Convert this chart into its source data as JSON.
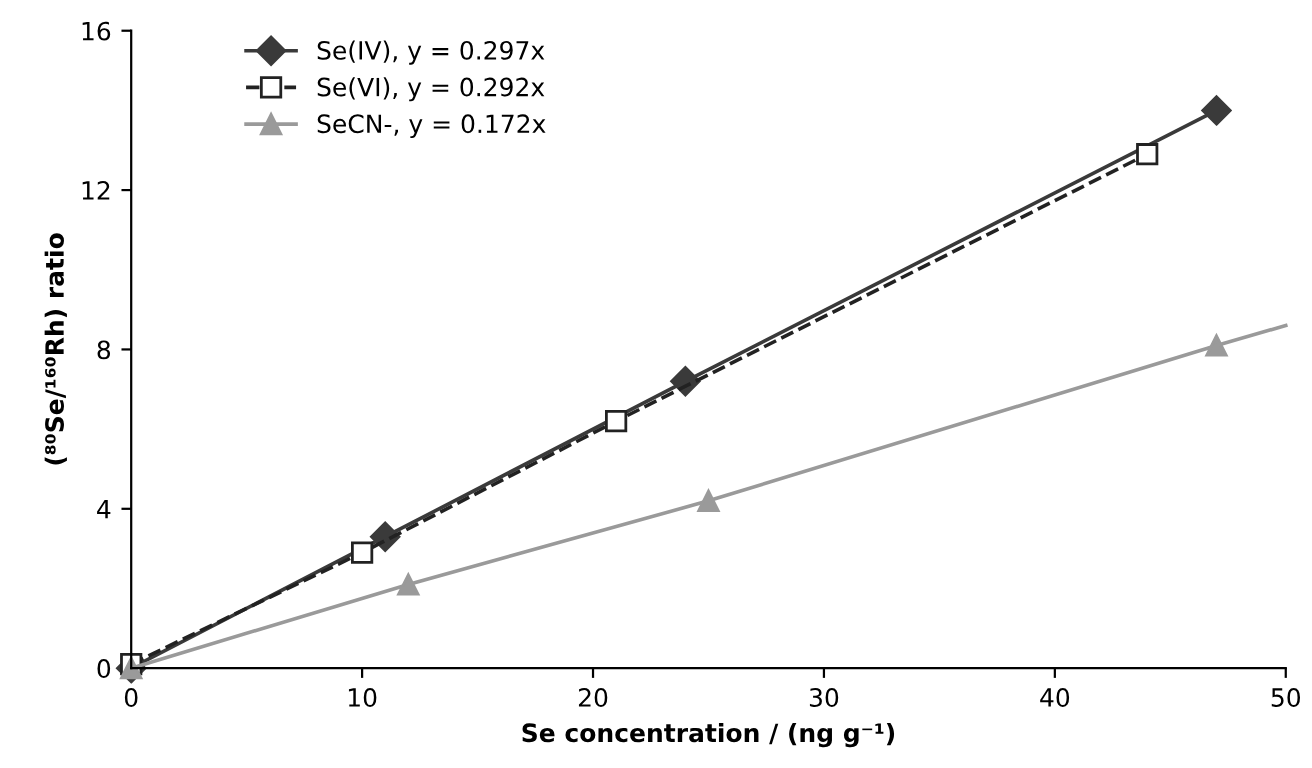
{
  "chart_data": {
    "type": "line",
    "xlabel": "Se concentration / (ng g⁻¹)",
    "ylabel": "(⁸⁰Se/¹⁶⁰Rh) ratio",
    "xlim": [
      0,
      50
    ],
    "xticks": [
      0,
      10,
      20,
      30,
      40,
      50
    ],
    "ylim": [
      0,
      16
    ],
    "yticks": [
      0,
      4,
      8,
      12,
      16
    ],
    "grid": false,
    "legend": "top left",
    "series": [
      {
        "name": "Se(IV), y = 0.297x",
        "color": "#3a3a3a",
        "marker": "diamond",
        "line_style": "solid",
        "x": [
          0,
          11,
          24,
          47
        ],
        "values": [
          0,
          3.3,
          7.2,
          14
        ]
      },
      {
        "name": "Se(VI), y = 0.292x",
        "color": "#222222",
        "marker": "square",
        "line_style": "dashed",
        "x": [
          0,
          10,
          21,
          44
        ],
        "values": [
          0.1,
          2.9,
          6.2,
          12.9
        ]
      },
      {
        "name": "SeCN-, y = 0.172x",
        "color": "#9a9a9a",
        "marker": "triangle",
        "line_style": "solid",
        "x": [
          0,
          12,
          25,
          47
        ],
        "values": [
          0,
          2.1,
          4.2,
          8.1
        ]
      },
      {
        "color": "#9a9a9a",
        "marker": "none",
        "line_style": "solid",
        "x": [
          47,
          50
        ],
        "values": [
          8.1,
          8.6
        ]
      }
    ]
  }
}
